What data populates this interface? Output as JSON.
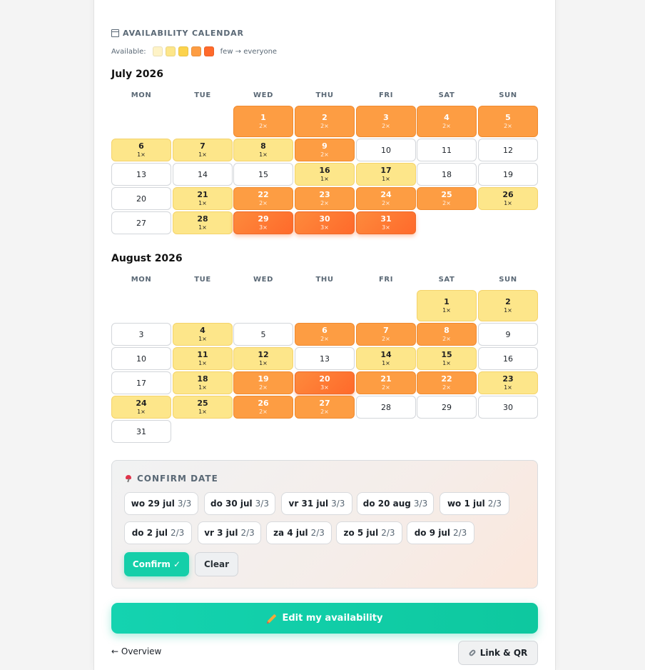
{
  "section_title": "AVAILABILITY CALENDAR",
  "legend": {
    "label": "Available:",
    "colors": [
      "#fef3c7",
      "#fde68a",
      "#fcd34d",
      "#fd9d43",
      "#ff6a2b"
    ],
    "range_text": "few → everyone"
  },
  "weekdays": [
    "MON",
    "TUE",
    "WED",
    "THU",
    "FRI",
    "SAT",
    "SUN"
  ],
  "months": [
    {
      "title": "July 2026",
      "first_weekday": 2,
      "days": [
        {
          "n": "1",
          "c": "2×",
          "lvl": 2
        },
        {
          "n": "2",
          "c": "2×",
          "lvl": 2
        },
        {
          "n": "3",
          "c": "2×",
          "lvl": 2
        },
        {
          "n": "4",
          "c": "2×",
          "lvl": 2
        },
        {
          "n": "5",
          "c": "2×",
          "lvl": 2
        },
        {
          "n": "6",
          "c": "1×",
          "lvl": 1
        },
        {
          "n": "7",
          "c": "1×",
          "lvl": 1
        },
        {
          "n": "8",
          "c": "1×",
          "lvl": 1
        },
        {
          "n": "9",
          "c": "2×",
          "lvl": 2
        },
        {
          "n": "10",
          "c": "",
          "lvl": 0
        },
        {
          "n": "11",
          "c": "",
          "lvl": 0
        },
        {
          "n": "12",
          "c": "",
          "lvl": 0
        },
        {
          "n": "13",
          "c": "",
          "lvl": 0
        },
        {
          "n": "14",
          "c": "",
          "lvl": 0
        },
        {
          "n": "15",
          "c": "",
          "lvl": 0
        },
        {
          "n": "16",
          "c": "1×",
          "lvl": 1
        },
        {
          "n": "17",
          "c": "1×",
          "lvl": 1
        },
        {
          "n": "18",
          "c": "",
          "lvl": 0
        },
        {
          "n": "19",
          "c": "",
          "lvl": 0
        },
        {
          "n": "20",
          "c": "",
          "lvl": 0
        },
        {
          "n": "21",
          "c": "1×",
          "lvl": 1
        },
        {
          "n": "22",
          "c": "2×",
          "lvl": 2
        },
        {
          "n": "23",
          "c": "2×",
          "lvl": 2
        },
        {
          "n": "24",
          "c": "2×",
          "lvl": 2
        },
        {
          "n": "25",
          "c": "2×",
          "lvl": 2
        },
        {
          "n": "26",
          "c": "1×",
          "lvl": 1
        },
        {
          "n": "27",
          "c": "",
          "lvl": 0
        },
        {
          "n": "28",
          "c": "1×",
          "lvl": 1
        },
        {
          "n": "29",
          "c": "3×",
          "lvl": 3
        },
        {
          "n": "30",
          "c": "3×",
          "lvl": 3
        },
        {
          "n": "31",
          "c": "3×",
          "lvl": 3
        }
      ]
    },
    {
      "title": "August 2026",
      "first_weekday": 5,
      "days": [
        {
          "n": "1",
          "c": "1×",
          "lvl": 1
        },
        {
          "n": "2",
          "c": "1×",
          "lvl": 1
        },
        {
          "n": "3",
          "c": "",
          "lvl": 0
        },
        {
          "n": "4",
          "c": "1×",
          "lvl": 1
        },
        {
          "n": "5",
          "c": "",
          "lvl": 0
        },
        {
          "n": "6",
          "c": "2×",
          "lvl": 2
        },
        {
          "n": "7",
          "c": "2×",
          "lvl": 2
        },
        {
          "n": "8",
          "c": "2×",
          "lvl": 2
        },
        {
          "n": "9",
          "c": "",
          "lvl": 0
        },
        {
          "n": "10",
          "c": "",
          "lvl": 0
        },
        {
          "n": "11",
          "c": "1×",
          "lvl": 1
        },
        {
          "n": "12",
          "c": "1×",
          "lvl": 1
        },
        {
          "n": "13",
          "c": "",
          "lvl": 0
        },
        {
          "n": "14",
          "c": "1×",
          "lvl": 1
        },
        {
          "n": "15",
          "c": "1×",
          "lvl": 1
        },
        {
          "n": "16",
          "c": "",
          "lvl": 0
        },
        {
          "n": "17",
          "c": "",
          "lvl": 0
        },
        {
          "n": "18",
          "c": "1×",
          "lvl": 1
        },
        {
          "n": "19",
          "c": "2×",
          "lvl": 2
        },
        {
          "n": "20",
          "c": "3×",
          "lvl": 3
        },
        {
          "n": "21",
          "c": "2×",
          "lvl": 2
        },
        {
          "n": "22",
          "c": "2×",
          "lvl": 2
        },
        {
          "n": "23",
          "c": "1×",
          "lvl": 1
        },
        {
          "n": "24",
          "c": "1×",
          "lvl": 1
        },
        {
          "n": "25",
          "c": "1×",
          "lvl": 1
        },
        {
          "n": "26",
          "c": "2×",
          "lvl": 2
        },
        {
          "n": "27",
          "c": "2×",
          "lvl": 2
        },
        {
          "n": "28",
          "c": "",
          "lvl": 0
        },
        {
          "n": "29",
          "c": "",
          "lvl": 0
        },
        {
          "n": "30",
          "c": "",
          "lvl": 0
        },
        {
          "n": "31",
          "c": "",
          "lvl": 0
        }
      ]
    }
  ],
  "confirm": {
    "title": "CONFIRM DATE",
    "chips": [
      {
        "date": "wo 29 jul",
        "score": "3/3"
      },
      {
        "date": "do 30 jul",
        "score": "3/3"
      },
      {
        "date": "vr 31 jul",
        "score": "3/3"
      },
      {
        "date": "do 20 aug",
        "score": "3/3"
      },
      {
        "date": "wo 1 jul",
        "score": "2/3"
      },
      {
        "date": "do 2 jul",
        "score": "2/3"
      },
      {
        "date": "vr 3 jul",
        "score": "2/3"
      },
      {
        "date": "za 4 jul",
        "score": "2/3"
      },
      {
        "date": "zo 5 jul",
        "score": "2/3"
      },
      {
        "date": "do 9 jul",
        "score": "2/3"
      }
    ],
    "confirm_label": "Confirm ✓",
    "clear_label": "Clear"
  },
  "edit_label": "Edit my availability",
  "overview_label": "← Overview",
  "link_label": "Link & QR"
}
